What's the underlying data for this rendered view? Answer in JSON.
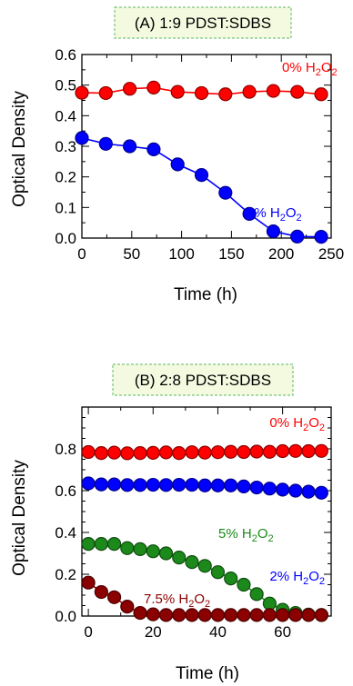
{
  "chart_data": [
    {
      "type": "line",
      "title": "(A) 1:9 PDST:SDBS",
      "xlabel": "Time (h)",
      "ylabel": "Optical Density",
      "xlim": [
        0,
        250
      ],
      "ylim": [
        0,
        0.6
      ],
      "xticks": [
        "0",
        "50",
        "100",
        "150",
        "200",
        "250"
      ],
      "yticks": [
        "0.0",
        "0.1",
        "0.2",
        "0.3",
        "0.4",
        "0.5",
        "0.6"
      ],
      "grid": false,
      "series": [
        {
          "name": "0% H2O2",
          "color": "#ff0000",
          "x": [
            0,
            24,
            48,
            72,
            96,
            120,
            144,
            168,
            192,
            216,
            240
          ],
          "y": [
            0.475,
            0.474,
            0.488,
            0.492,
            0.478,
            0.474,
            0.47,
            0.478,
            0.481,
            0.478,
            0.47
          ]
        },
        {
          "name": "2% H2O2",
          "color": "#0000ff",
          "x": [
            0,
            24,
            48,
            72,
            96,
            120,
            144,
            168,
            192,
            216,
            240
          ],
          "y": [
            0.327,
            0.308,
            0.3,
            0.29,
            0.241,
            0.206,
            0.148,
            0.079,
            0.022,
            0.005,
            0.004
          ]
        }
      ]
    },
    {
      "type": "line",
      "title": "(B) 2:8 PDST:SDBS",
      "xlabel": "Time (h)",
      "ylabel": "Optical Density",
      "xlim": [
        -2,
        75
      ],
      "ylim": [
        0,
        1.0
      ],
      "xticks": [
        "0",
        "20",
        "40",
        "60"
      ],
      "yticks": [
        "0.0",
        "0.2",
        "0.4",
        "0.6",
        "0.8"
      ],
      "grid": false,
      "series": [
        {
          "name": "0% H2O2",
          "color": "#ff0000",
          "x": [
            0,
            4,
            8,
            12,
            16,
            20,
            24,
            28,
            32,
            36,
            40,
            44,
            48,
            52,
            56,
            60,
            64,
            68,
            72
          ],
          "y": [
            0.785,
            0.78,
            0.782,
            0.779,
            0.78,
            0.781,
            0.783,
            0.78,
            0.784,
            0.782,
            0.784,
            0.786,
            0.785,
            0.787,
            0.786,
            0.789,
            0.79,
            0.789,
            0.79
          ]
        },
        {
          "name": "2% H2O2",
          "color": "#0000ff",
          "x": [
            0,
            4,
            8,
            12,
            16,
            20,
            24,
            28,
            32,
            36,
            40,
            44,
            48,
            52,
            56,
            60,
            64,
            68,
            72
          ],
          "y": [
            0.635,
            0.63,
            0.63,
            0.627,
            0.627,
            0.628,
            0.627,
            0.628,
            0.628,
            0.625,
            0.625,
            0.625,
            0.62,
            0.615,
            0.61,
            0.605,
            0.6,
            0.595,
            0.59
          ]
        },
        {
          "name": "5% H2O2",
          "color": "#1b8a1b",
          "x": [
            0,
            4,
            8,
            12,
            16,
            20,
            24,
            28,
            32,
            36,
            40,
            44,
            48,
            52,
            56,
            60,
            64,
            68,
            72
          ],
          "y": [
            0.345,
            0.345,
            0.345,
            0.325,
            0.32,
            0.31,
            0.3,
            0.28,
            0.258,
            0.24,
            0.21,
            0.18,
            0.15,
            0.105,
            0.06,
            0.03,
            0.015,
            0.007,
            0.005
          ]
        },
        {
          "name": "7.5% H2O2",
          "color": "#8b0000",
          "x": [
            0,
            4,
            8,
            12,
            16,
            20,
            24,
            28,
            32,
            36,
            40,
            44,
            48,
            52,
            56,
            60,
            64,
            68,
            72
          ],
          "y": [
            0.16,
            0.115,
            0.09,
            0.045,
            0.015,
            0.008,
            0.005,
            0.005,
            0.005,
            0.005,
            0.005,
            0.005,
            0.005,
            0.005,
            0.005,
            0.005,
            0.005,
            0.005,
            0.005
          ]
        }
      ]
    }
  ],
  "panels": [
    {
      "series_labels": [
        {
          "prefix": "0% H",
          "sub": "2",
          "mid": "O",
          "sub2": "2"
        },
        {
          "prefix": "2% H",
          "sub": "2",
          "mid": "O",
          "sub2": "2"
        }
      ]
    },
    {
      "series_labels": [
        {
          "prefix": "0% H",
          "sub": "2",
          "mid": "O",
          "sub2": "2"
        },
        {
          "prefix": "2% H",
          "sub": "2",
          "mid": "O",
          "sub2": "2"
        },
        {
          "prefix": "5% H",
          "sub": "2",
          "mid": "O",
          "sub2": "2"
        },
        {
          "prefix": "7.5% H",
          "sub": "2",
          "mid": "O",
          "sub2": "2"
        }
      ]
    }
  ]
}
